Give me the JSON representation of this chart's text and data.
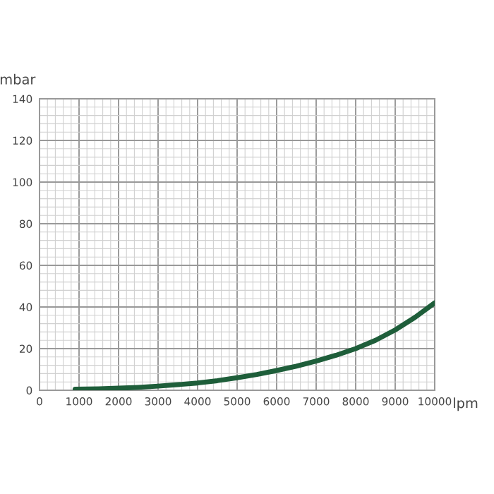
{
  "chart_data": {
    "type": "line",
    "xlabel": "lpm",
    "ylabel": "mbar",
    "x": [
      900,
      1500,
      2000,
      2500,
      3000,
      3500,
      4000,
      4500,
      5000,
      5500,
      6000,
      6500,
      7000,
      7500,
      8000,
      8500,
      9000,
      9500,
      10000
    ],
    "series": [
      {
        "color": "#1e5e3a",
        "values": [
          0.5,
          0.7,
          1,
          1.4,
          2,
          2.7,
          3.5,
          4.6,
          6,
          7.6,
          9.5,
          11.6,
          14,
          16.8,
          20,
          24,
          29,
          35,
          42
        ]
      }
    ],
    "xlim": [
      0,
      10000
    ],
    "xticks": [
      0,
      1000,
      2000,
      3000,
      4000,
      5000,
      6000,
      7000,
      8000,
      9000,
      10000
    ],
    "ylim": [
      0,
      140
    ],
    "yticks": [
      0,
      20,
      40,
      60,
      80,
      100,
      120,
      140
    ],
    "grid": true,
    "line_style": "solid",
    "marker": "none"
  }
}
